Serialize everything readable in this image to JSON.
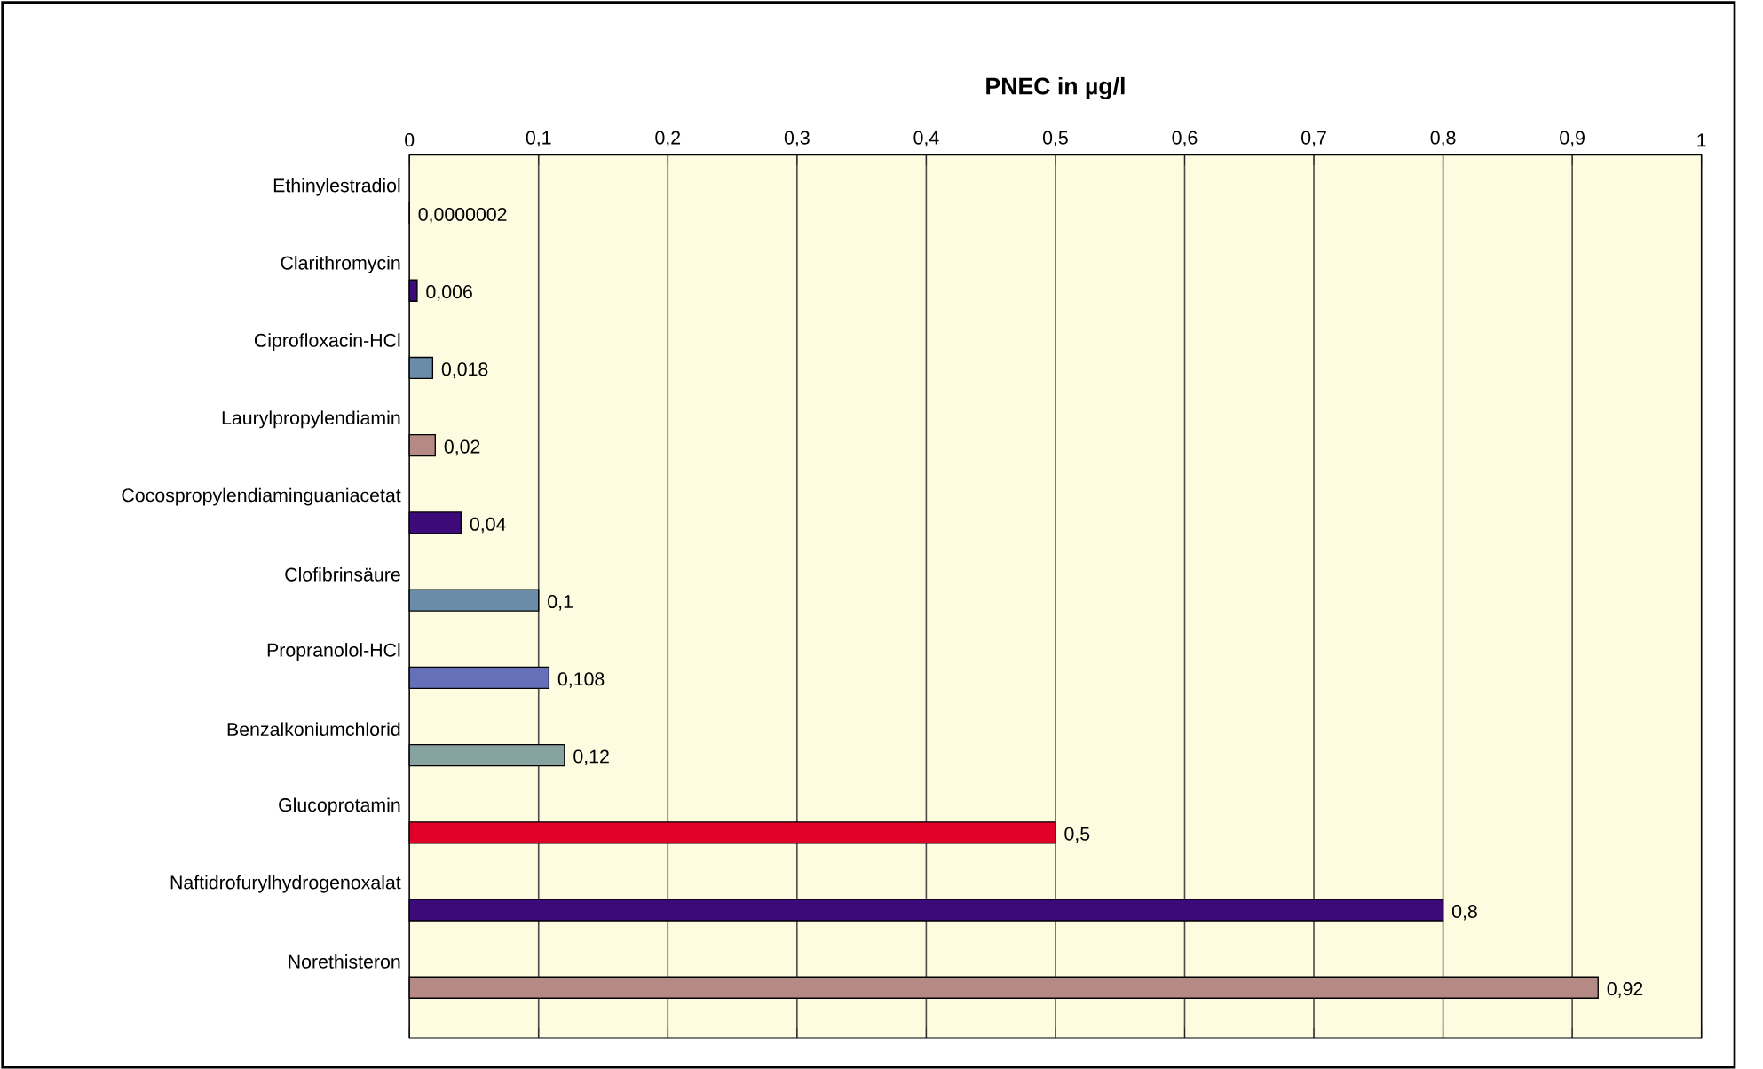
{
  "chart_data": {
    "type": "bar",
    "orientation": "horizontal",
    "title": "PNEC in µg/l",
    "categories": [
      "Ethinylestradiol",
      "Clarithromycin",
      "Ciprofloxacin-HCl",
      "Laurylpropylendiamin",
      "Cocospropylendiaminguaniacetat",
      "Clofibrinsäure",
      "Propranolol-HCl",
      "Benzalkoniumchlorid",
      "Glucoprotamin",
      "Naftidrofurylhydrogenoxalat",
      "Norethisteron"
    ],
    "values": [
      2e-07,
      0.006,
      0.018,
      0.02,
      0.04,
      0.1,
      0.108,
      0.12,
      0.5,
      0.8,
      0.92
    ],
    "value_labels": [
      "0,0000002",
      "0,006",
      "0,018",
      "0,02",
      "0,04",
      "0,1",
      "0,108",
      "0,12",
      "0,5",
      "0,8",
      "0,92"
    ],
    "colors": [
      "#3d0a7a",
      "#3d0a7a",
      "#6a8ca8",
      "#b58a85",
      "#3d0a7a",
      "#6a8ca8",
      "#6670b8",
      "#86a3a0",
      "#e00028",
      "#3d0a7a",
      "#b58a85"
    ],
    "xlim": [
      0,
      1
    ],
    "xticks": [
      0,
      {
        "value": 0.1,
        "label": "0,1"
      },
      {
        "value": 0.2,
        "label": "0,2"
      },
      {
        "value": 0.3,
        "label": "0,3"
      },
      {
        "value": 0.4,
        "label": "0,4"
      },
      {
        "value": 0.5,
        "label": "0,5"
      },
      {
        "value": 0.6,
        "label": "0,6"
      },
      {
        "value": 0.7,
        "label": "0,7"
      },
      {
        "value": 0.8,
        "label": "0,8"
      },
      {
        "value": 0.9,
        "label": "0,9"
      },
      1
    ],
    "grid": "x"
  }
}
